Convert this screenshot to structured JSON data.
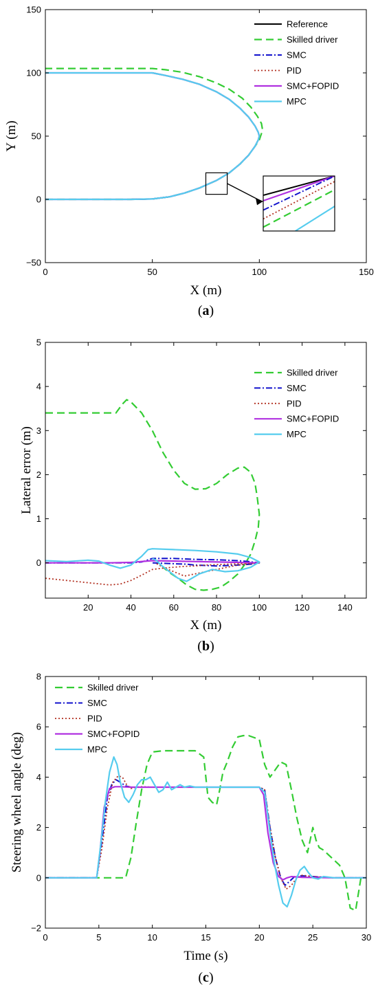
{
  "colors": {
    "Reference": "#000000",
    "Skilled driver": "#33cc33",
    "SMC": "#1010cc",
    "PID": "#b23020",
    "SMC+FOPID": "#b030e0",
    "MPC": "#55ccee"
  },
  "chart_data": [
    {
      "id": "a",
      "type": "line",
      "caption_left": "(",
      "caption_letter": "a",
      "caption_right": ")",
      "xlabel": "X (m)",
      "ylabel": "Y (m)",
      "xlim": [
        0,
        150
      ],
      "ylim": [
        -50,
        150
      ],
      "xticks": [
        0,
        50,
        100,
        150
      ],
      "yticks": [
        -50,
        0,
        50,
        100,
        150
      ],
      "ytick_labels": [
        "−50",
        "0",
        "50",
        "100",
        "150"
      ],
      "legend": [
        "Reference",
        "Skilled driver",
        "SMC",
        "PID",
        "SMC+FOPID",
        "MPC"
      ],
      "series": [
        {
          "name": "Reference",
          "x": [
            0,
            40,
            50,
            58,
            65,
            72,
            80,
            86,
            91,
            95,
            98,
            99.5,
            100,
            99.5,
            98,
            95,
            91,
            86,
            80,
            72,
            64,
            56,
            50,
            40,
            0
          ],
          "y": [
            0,
            0,
            0.3,
            2,
            5,
            9,
            15,
            21,
            28,
            35,
            42,
            47,
            50,
            53,
            58,
            65,
            72,
            79,
            85,
            91,
            95,
            98,
            100,
            100,
            100
          ]
        },
        {
          "name": "Skilled driver",
          "x": [
            0,
            40,
            50,
            58,
            65,
            72,
            80,
            86,
            91,
            95,
            98,
            100,
            101,
            101.5,
            101,
            99,
            96,
            92,
            86,
            80,
            72,
            64,
            56,
            50,
            40,
            0
          ],
          "y": [
            0,
            0,
            0.3,
            2,
            5,
            9,
            15,
            21,
            28,
            35,
            42,
            47,
            52,
            55,
            60,
            66,
            73,
            80,
            87,
            92,
            97,
            100.5,
            102.5,
            103.5,
            103.5,
            103.5
          ]
        },
        {
          "name": "SMC",
          "x": [
            0,
            40,
            50,
            58,
            65,
            72,
            80,
            86,
            91,
            95,
            98,
            99.5,
            100,
            99.5,
            98,
            95,
            91,
            86,
            80,
            72,
            64,
            56,
            50,
            40,
            0
          ],
          "y": [
            0,
            0,
            0.3,
            2,
            5,
            9,
            15,
            21,
            28,
            35,
            42,
            47,
            50,
            53,
            58,
            65,
            72,
            79,
            85,
            91,
            95,
            98,
            100,
            100,
            100
          ]
        },
        {
          "name": "PID",
          "x": [
            0,
            40,
            50,
            58,
            65,
            72,
            80,
            86,
            91,
            95,
            98,
            99.5,
            100,
            99.5,
            98,
            95,
            91,
            86,
            80,
            72,
            64,
            56,
            50,
            40,
            0
          ],
          "y": [
            0,
            0,
            0.3,
            2,
            5,
            9,
            15,
            21,
            28,
            35,
            42,
            47,
            50,
            53,
            58,
            65,
            72,
            79,
            85,
            91,
            95,
            98,
            100,
            100,
            100
          ]
        },
        {
          "name": "SMC+FOPID",
          "x": [
            0,
            40,
            50,
            58,
            65,
            72,
            80,
            86,
            91,
            95,
            98,
            99.5,
            100,
            99.5,
            98,
            95,
            91,
            86,
            80,
            72,
            64,
            56,
            50,
            40,
            0
          ],
          "y": [
            0,
            0,
            0.3,
            2,
            5,
            9,
            15,
            21,
            28,
            35,
            42,
            47,
            50,
            53,
            58,
            65,
            72,
            79,
            85,
            91,
            95,
            98,
            100,
            100,
            100
          ]
        },
        {
          "name": "MPC",
          "x": [
            0,
            40,
            50,
            58,
            65,
            72,
            80,
            86,
            91,
            95,
            98,
            99.5,
            100,
            99.5,
            98,
            95,
            91,
            86,
            80,
            72,
            64,
            56,
            50,
            40,
            0
          ],
          "y": [
            0,
            0,
            0.3,
            2,
            5,
            9,
            15,
            21,
            28,
            35,
            42,
            47,
            50,
            53,
            58,
            65,
            72,
            79,
            85,
            91,
            95,
            98,
            100,
            100,
            100
          ]
        }
      ],
      "inset": {
        "box_x": [
          75,
          85
        ],
        "box_y": [
          4,
          21
        ],
        "series": [
          {
            "name": "Reference",
            "x0": 0,
            "y0": 0.65,
            "x1": 1,
            "y1": 1.0
          },
          {
            "name": "SMC+FOPID",
            "x0": 0,
            "y0": 0.55,
            "x1": 1,
            "y1": 1.0
          },
          {
            "name": "SMC",
            "x0": 0,
            "y0": 0.38,
            "x1": 1,
            "y1": 1.0
          },
          {
            "name": "PID",
            "x0": 0,
            "y0": 0.22,
            "x1": 1,
            "y1": 0.9
          },
          {
            "name": "Skilled driver",
            "x0": 0,
            "y0": 0.07,
            "x1": 1,
            "y1": 0.75
          },
          {
            "name": "MPC",
            "x0": 0.45,
            "y0": 0.0,
            "x1": 1,
            "y1": 0.45
          }
        ]
      }
    },
    {
      "id": "b",
      "type": "line",
      "caption_left": "(",
      "caption_letter": "b",
      "caption_right": ")",
      "xlabel": "X (m)",
      "ylabel": "Lateral error (m)",
      "xlim": [
        0,
        150
      ],
      "ylim": [
        -0.8,
        5
      ],
      "xticks": [
        20,
        40,
        60,
        80,
        100,
        120,
        140
      ],
      "yticks": [
        0,
        1,
        2,
        3,
        4,
        5
      ],
      "ytick_labels": [
        "0",
        "1",
        "2",
        "3",
        "4",
        "5"
      ],
      "legend": [
        "Skilled driver",
        "SMC",
        "PID",
        "SMC+FOPID",
        "MPC"
      ],
      "series": [
        {
          "name": "Skilled driver",
          "x": [
            0,
            33,
            36,
            38,
            40,
            45,
            50,
            55,
            60,
            65,
            70,
            75,
            80,
            85,
            90,
            93,
            96,
            98,
            99,
            100,
            99.5,
            98,
            96,
            93,
            90,
            86,
            82,
            78,
            74,
            70,
            66,
            62,
            58,
            55
          ],
          "y": [
            3.4,
            3.4,
            3.6,
            3.7,
            3.65,
            3.4,
            3.0,
            2.5,
            2.1,
            1.8,
            1.67,
            1.68,
            1.8,
            2.0,
            2.15,
            2.17,
            2.05,
            1.8,
            1.5,
            1.1,
            0.8,
            0.5,
            0.2,
            -0.05,
            -0.25,
            -0.42,
            -0.55,
            -0.6,
            -0.62,
            -0.6,
            -0.5,
            -0.35,
            -0.22,
            -0.1
          ]
        },
        {
          "name": "SMC",
          "x": [
            0,
            30,
            40,
            45,
            50,
            60,
            70,
            80,
            90,
            95,
            100,
            96,
            90,
            80,
            70,
            66,
            60,
            55,
            50
          ],
          "y": [
            0,
            0,
            0,
            0.02,
            0.1,
            0.1,
            0.08,
            0.07,
            0.05,
            0.03,
            0,
            -0.03,
            -0.05,
            -0.07,
            -0.05,
            -0.03,
            -0.02,
            -0.01,
            0
          ]
        },
        {
          "name": "PID",
          "x": [
            0,
            10,
            20,
            30,
            35,
            40,
            45,
            50,
            55,
            60,
            65,
            70,
            75,
            80,
            90,
            100,
            95,
            90,
            80,
            70,
            65,
            60,
            55,
            52
          ],
          "y": [
            -0.35,
            -0.4,
            -0.45,
            -0.5,
            -0.48,
            -0.4,
            -0.28,
            -0.15,
            -0.12,
            -0.1,
            -0.08,
            -0.07,
            -0.05,
            -0.04,
            -0.02,
            0,
            -0.02,
            -0.05,
            -0.15,
            -0.25,
            -0.3,
            -0.2,
            -0.1,
            -0.02
          ]
        },
        {
          "name": "SMC+FOPID",
          "x": [
            0,
            30,
            40,
            50,
            60,
            70,
            80,
            90,
            100
          ],
          "y": [
            0,
            0,
            0.01,
            0.05,
            0.04,
            0.03,
            0.02,
            0.01,
            0
          ]
        },
        {
          "name": "MPC",
          "x": [
            0,
            10,
            20,
            25,
            30,
            35,
            40,
            45,
            48,
            50,
            60,
            70,
            80,
            90,
            96,
            100,
            96,
            90,
            84,
            78,
            72,
            66,
            62,
            58,
            54,
            52,
            50
          ],
          "y": [
            0.05,
            0.03,
            0.06,
            0.04,
            -0.05,
            -0.12,
            -0.05,
            0.15,
            0.3,
            0.32,
            0.3,
            0.28,
            0.25,
            0.2,
            0.12,
            0.02,
            -0.1,
            -0.18,
            -0.2,
            -0.15,
            -0.25,
            -0.42,
            -0.35,
            -0.2,
            -0.05,
            0.05,
            0.1
          ]
        }
      ]
    },
    {
      "id": "c",
      "type": "line",
      "caption_left": "(",
      "caption_letter": "c",
      "caption_right": ")",
      "xlabel": "Time (s)",
      "ylabel": "Steering wheel angle (deg)",
      "xlim": [
        0,
        30
      ],
      "ylim": [
        -2,
        8
      ],
      "xticks": [
        0,
        5,
        10,
        15,
        20,
        25,
        30
      ],
      "yticks": [
        -2,
        0,
        2,
        4,
        6,
        8
      ],
      "ytick_labels": [
        "−2",
        "0",
        "2",
        "4",
        "6",
        "8"
      ],
      "legend": [
        "Skilled driver",
        "SMC",
        "PID",
        "SMC+FOPID",
        "MPC"
      ],
      "series": [
        {
          "name": "Skilled driver",
          "x": [
            0,
            7.5,
            8,
            8.5,
            9,
            9.5,
            10,
            11,
            12,
            13,
            14,
            14.8,
            15.2,
            15.6,
            16,
            16.3,
            16.6,
            17,
            17.5,
            18,
            18.5,
            19,
            20,
            20.5,
            21,
            21.5,
            22,
            22.5,
            23,
            23.5,
            24,
            24.5,
            24.8,
            25,
            25.3,
            25.6,
            26,
            26.5,
            27,
            27.5,
            28,
            28.5,
            29,
            29.5,
            30
          ],
          "y": [
            0,
            0,
            0.8,
            2.2,
            3.5,
            4.5,
            5,
            5.05,
            5.05,
            5.05,
            5.05,
            4.8,
            3.2,
            3.0,
            2.9,
            3.5,
            4.2,
            4.6,
            5.2,
            5.6,
            5.65,
            5.65,
            5.5,
            4.5,
            4.0,
            4.3,
            4.6,
            4.5,
            3.5,
            2.4,
            1.5,
            1.0,
            1.6,
            2.0,
            1.5,
            1.2,
            1.1,
            0.9,
            0.7,
            0.5,
            0,
            -1.2,
            -1.3,
            0,
            0
          ]
        },
        {
          "name": "SMC",
          "x": [
            0,
            4.8,
            5.3,
            5.8,
            6.2,
            6.6,
            7,
            7.5,
            8,
            9,
            10,
            12,
            15,
            18,
            20,
            20.5,
            21,
            21.5,
            22,
            22.4,
            22.8,
            23.3,
            24,
            25,
            27,
            30
          ],
          "y": [
            0,
            0,
            1.5,
            3.2,
            3.7,
            3.9,
            3.8,
            3.65,
            3.6,
            3.6,
            3.6,
            3.6,
            3.6,
            3.6,
            3.6,
            3.5,
            2.0,
            0.8,
            0.0,
            -0.3,
            -0.15,
            0.05,
            0.08,
            0.05,
            0,
            0
          ]
        },
        {
          "name": "PID",
          "x": [
            0,
            4.8,
            5.3,
            5.8,
            6.3,
            6.8,
            7.2,
            7.6,
            8,
            8.5,
            9,
            10,
            12,
            15,
            18,
            20,
            20.5,
            21,
            21.5,
            22,
            22.5,
            23,
            23.5,
            24,
            25,
            27,
            30
          ],
          "y": [
            0,
            0,
            1.2,
            2.8,
            3.8,
            4.05,
            4.0,
            3.7,
            3.55,
            3.6,
            3.62,
            3.6,
            3.6,
            3.6,
            3.6,
            3.6,
            3.5,
            2.0,
            0.8,
            0.0,
            -0.45,
            -0.3,
            0.0,
            0.1,
            0.05,
            0,
            0
          ]
        },
        {
          "name": "SMC+FOPID",
          "x": [
            0,
            4.8,
            5.1,
            5.5,
            6,
            6.5,
            7,
            8,
            10,
            12,
            15,
            18,
            20,
            20.4,
            20.8,
            21.3,
            21.8,
            22.2,
            22.6,
            23,
            24,
            27,
            30
          ],
          "y": [
            0,
            0,
            1.0,
            2.8,
            3.55,
            3.62,
            3.62,
            3.6,
            3.6,
            3.6,
            3.6,
            3.6,
            3.6,
            3.3,
            1.8,
            0.6,
            0.05,
            -0.08,
            0.0,
            0.05,
            0.02,
            0,
            0
          ]
        },
        {
          "name": "MPC",
          "x": [
            0,
            4.8,
            5.2,
            5.6,
            6,
            6.4,
            6.7,
            7,
            7.4,
            7.8,
            8.2,
            8.6,
            9,
            9.4,
            9.8,
            10.2,
            10.6,
            11,
            11.4,
            11.8,
            12.2,
            12.6,
            13,
            13.5,
            14,
            15,
            16,
            17,
            18,
            19,
            20,
            20.5,
            21,
            21.4,
            21.8,
            22.2,
            22.6,
            23,
            23.4,
            23.8,
            24.2,
            24.6,
            25,
            25.5,
            26,
            27,
            30
          ],
          "y": [
            0,
            0,
            1.4,
            3.0,
            4.2,
            4.8,
            4.5,
            3.8,
            3.2,
            3.0,
            3.3,
            3.7,
            3.9,
            3.9,
            4.0,
            3.7,
            3.4,
            3.5,
            3.8,
            3.5,
            3.6,
            3.7,
            3.6,
            3.65,
            3.6,
            3.6,
            3.6,
            3.6,
            3.6,
            3.6,
            3.6,
            3.4,
            1.8,
            0.6,
            -0.3,
            -1.0,
            -1.15,
            -0.7,
            -0.1,
            0.3,
            0.45,
            0.2,
            0.0,
            -0.05,
            0.05,
            0.0,
            0.0
          ]
        }
      ]
    }
  ]
}
